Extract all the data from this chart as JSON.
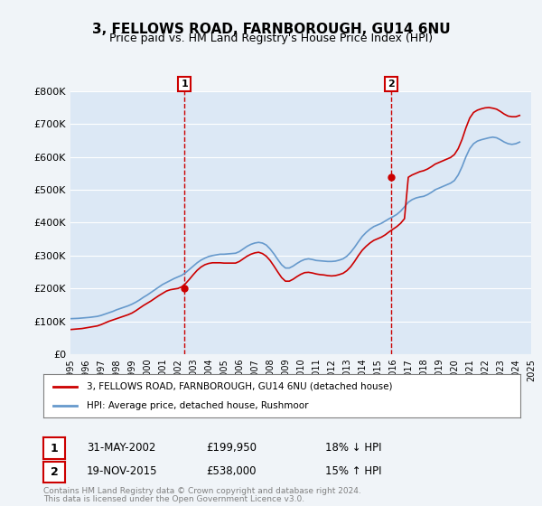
{
  "title": "3, FELLOWS ROAD, FARNBOROUGH, GU14 6NU",
  "subtitle": "Price paid vs. HM Land Registry's House Price Index (HPI)",
  "red_line_label": "3, FELLOWS ROAD, FARNBOROUGH, GU14 6NU (detached house)",
  "blue_line_label": "HPI: Average price, detached house, Rushmoor",
  "annotation1": {
    "label": "1",
    "date": "31-MAY-2002",
    "price": "£199,950",
    "pct": "18% ↓ HPI",
    "x_year": 2002.42,
    "y_val": 199950
  },
  "annotation2": {
    "label": "2",
    "date": "19-NOV-2015",
    "price": "£538,000",
    "pct": "15% ↑ HPI",
    "x_year": 2015.88,
    "y_val": 538000
  },
  "footnote1": "Contains HM Land Registry data © Crown copyright and database right 2024.",
  "footnote2": "This data is licensed under the Open Government Licence v3.0.",
  "ylim": [
    0,
    800000
  ],
  "yticks": [
    0,
    100000,
    200000,
    300000,
    400000,
    500000,
    600000,
    700000,
    800000
  ],
  "ytick_labels": [
    "£0",
    "£100K",
    "£200K",
    "£300K",
    "£400K",
    "£500K",
    "£600K",
    "£700K",
    "£800K"
  ],
  "xlim_start": 1995,
  "xlim_end": 2025,
  "background_color": "#f0f4f8",
  "plot_bg_color": "#dce8f5",
  "red_color": "#cc0000",
  "blue_color": "#6699cc",
  "grid_color": "#ffffff",
  "hpi_years": [
    1995,
    1995.25,
    1995.5,
    1995.75,
    1996,
    1996.25,
    1996.5,
    1996.75,
    1997,
    1997.25,
    1997.5,
    1997.75,
    1998,
    1998.25,
    1998.5,
    1998.75,
    1999,
    1999.25,
    1999.5,
    1999.75,
    2000,
    2000.25,
    2000.5,
    2000.75,
    2001,
    2001.25,
    2001.5,
    2001.75,
    2002,
    2002.25,
    2002.5,
    2002.75,
    2003,
    2003.25,
    2003.5,
    2003.75,
    2004,
    2004.25,
    2004.5,
    2004.75,
    2005,
    2005.25,
    2005.5,
    2005.75,
    2006,
    2006.25,
    2006.5,
    2006.75,
    2007,
    2007.25,
    2007.5,
    2007.75,
    2008,
    2008.25,
    2008.5,
    2008.75,
    2009,
    2009.25,
    2009.5,
    2009.75,
    2010,
    2010.25,
    2010.5,
    2010.75,
    2011,
    2011.25,
    2011.5,
    2011.75,
    2012,
    2012.25,
    2012.5,
    2012.75,
    2013,
    2013.25,
    2013.5,
    2013.75,
    2014,
    2014.25,
    2014.5,
    2014.75,
    2015,
    2015.25,
    2015.5,
    2015.75,
    2016,
    2016.25,
    2016.5,
    2016.75,
    2017,
    2017.25,
    2017.5,
    2017.75,
    2018,
    2018.25,
    2018.5,
    2018.75,
    2019,
    2019.25,
    2019.5,
    2019.75,
    2020,
    2020.25,
    2020.5,
    2020.75,
    2021,
    2021.25,
    2021.5,
    2021.75,
    2022,
    2022.25,
    2022.5,
    2022.75,
    2023,
    2023.25,
    2023.5,
    2023.75,
    2024,
    2024.25
  ],
  "hpi_values": [
    108000,
    108500,
    109000,
    110000,
    111000,
    112000,
    113500,
    115000,
    118000,
    122000,
    126000,
    130000,
    135000,
    139000,
    143000,
    147000,
    152000,
    158000,
    165000,
    173000,
    180000,
    188000,
    196000,
    204000,
    212000,
    218000,
    224000,
    230000,
    235000,
    240000,
    248000,
    258000,
    268000,
    278000,
    286000,
    292000,
    297000,
    300000,
    302000,
    304000,
    304000,
    305000,
    306000,
    307000,
    312000,
    320000,
    328000,
    334000,
    338000,
    340000,
    338000,
    332000,
    320000,
    305000,
    288000,
    272000,
    262000,
    262000,
    268000,
    276000,
    283000,
    288000,
    290000,
    288000,
    285000,
    284000,
    283000,
    282000,
    282000,
    283000,
    286000,
    290000,
    298000,
    310000,
    325000,
    342000,
    358000,
    370000,
    380000,
    388000,
    393000,
    398000,
    405000,
    412000,
    418000,
    425000,
    435000,
    448000,
    462000,
    470000,
    475000,
    478000,
    480000,
    485000,
    492000,
    500000,
    505000,
    510000,
    515000,
    520000,
    528000,
    545000,
    570000,
    600000,
    625000,
    640000,
    648000,
    652000,
    655000,
    658000,
    660000,
    658000,
    652000,
    645000,
    640000,
    638000,
    640000,
    645000
  ],
  "red_years": [
    1995,
    1995.25,
    1995.5,
    1995.75,
    1996,
    1996.25,
    1996.5,
    1996.75,
    1997,
    1997.25,
    1997.5,
    1997.75,
    1998,
    1998.25,
    1998.5,
    1998.75,
    1999,
    1999.25,
    1999.5,
    1999.75,
    2000,
    2000.25,
    2000.5,
    2000.75,
    2001,
    2001.25,
    2001.5,
    2001.75,
    2002,
    2002.25,
    2002.5,
    2002.75,
    2003,
    2003.25,
    2003.5,
    2003.75,
    2004,
    2004.25,
    2004.5,
    2004.75,
    2005,
    2005.25,
    2005.5,
    2005.75,
    2006,
    2006.25,
    2006.5,
    2006.75,
    2007,
    2007.25,
    2007.5,
    2007.75,
    2008,
    2008.25,
    2008.5,
    2008.75,
    2009,
    2009.25,
    2009.5,
    2009.75,
    2010,
    2010.25,
    2010.5,
    2010.75,
    2011,
    2011.25,
    2011.5,
    2011.75,
    2012,
    2012.25,
    2012.5,
    2012.75,
    2013,
    2013.25,
    2013.5,
    2013.75,
    2014,
    2014.25,
    2014.5,
    2014.75,
    2015,
    2015.25,
    2015.5,
    2015.75,
    2016,
    2016.25,
    2016.5,
    2016.75,
    2017,
    2017.25,
    2017.5,
    2017.75,
    2018,
    2018.25,
    2018.5,
    2018.75,
    2019,
    2019.25,
    2019.5,
    2019.75,
    2020,
    2020.25,
    2020.5,
    2020.75,
    2021,
    2021.25,
    2021.5,
    2021.75,
    2022,
    2022.25,
    2022.5,
    2022.75,
    2023,
    2023.25,
    2023.5,
    2023.75,
    2024,
    2024.25
  ],
  "red_values": [
    75000,
    76000,
    77000,
    78000,
    80000,
    82000,
    84000,
    86000,
    90000,
    95000,
    100000,
    104000,
    108000,
    112000,
    116000,
    120000,
    125000,
    132000,
    140000,
    148000,
    155000,
    162000,
    170000,
    178000,
    185000,
    192000,
    196000,
    198000,
    199950,
    205000,
    215000,
    228000,
    242000,
    255000,
    265000,
    272000,
    276000,
    278000,
    278000,
    278000,
    277000,
    277000,
    277000,
    277000,
    282000,
    290000,
    298000,
    304000,
    308000,
    310000,
    306000,
    298000,
    285000,
    268000,
    250000,
    233000,
    222000,
    222000,
    228000,
    236000,
    243000,
    248000,
    249000,
    247000,
    244000,
    242000,
    241000,
    239000,
    238000,
    239000,
    242000,
    246000,
    254000,
    266000,
    282000,
    300000,
    316000,
    328000,
    338000,
    346000,
    351000,
    356000,
    363000,
    372000,
    380000,
    388000,
    398000,
    412000,
    538000,
    545000,
    550000,
    555000,
    558000,
    563000,
    570000,
    578000,
    583000,
    588000,
    593000,
    598000,
    607000,
    625000,
    653000,
    688000,
    718000,
    735000,
    742000,
    746000,
    749000,
    750000,
    748000,
    745000,
    738000,
    730000,
    724000,
    722000,
    722000,
    726000
  ],
  "vline1_x": 2002.42,
  "vline2_x": 2015.88
}
